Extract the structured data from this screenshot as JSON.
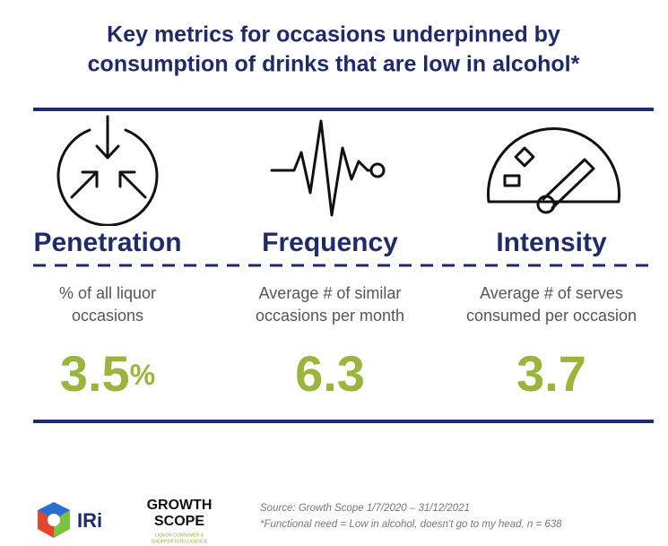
{
  "header": {
    "title": [
      "Key metrics for occasions underpinned by",
      "consumption of drinks that are low in alcohol*"
    ]
  },
  "metrics": [
    {
      "name": "Penetration",
      "description": [
        "% of all liquor",
        "occasions"
      ],
      "value": "3.5",
      "unit": "%"
    },
    {
      "name": "Frequency",
      "description": [
        "Average # of similar",
        "occasions per month"
      ],
      "value": "6.3"
    },
    {
      "name": "Intensity",
      "description": [
        "Average # of serves",
        "consumed per occasion"
      ],
      "value": "3.7"
    }
  ],
  "footer": {
    "logos": [
      "IRi",
      "GROWTH",
      "SCOPE",
      "LIQUOR CONSUMER &",
      "SHOPPER INTELLIGENCE"
    ],
    "source": [
      "Source: Growth Scope 1/7/2020 – 31/12/2021",
      "*Functional need = Low in alcohol, doesn't go to my head, n = 638"
    ]
  }
}
